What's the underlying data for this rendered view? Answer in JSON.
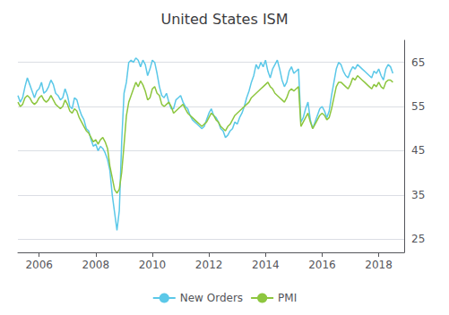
{
  "chart_data": {
    "type": "line",
    "title": "United States ISM",
    "x": [
      2005.25,
      2005.3333333333333,
      2005.4166666666667,
      2005.5,
      2005.5833333333333,
      2005.6666666666667,
      2005.75,
      2005.8333333333333,
      2005.9166666666667,
      2006,
      2006.0833333333333,
      2006.1666666666667,
      2006.25,
      2006.3333333333333,
      2006.4166666666667,
      2006.5,
      2006.5833333333333,
      2006.6666666666667,
      2006.75,
      2006.8333333333333,
      2006.9166666666667,
      2007,
      2007.0833333333333,
      2007.1666666666667,
      2007.25,
      2007.3333333333333,
      2007.4166666666667,
      2007.5,
      2007.5833333333333,
      2007.6666666666667,
      2007.75,
      2007.8333333333333,
      2007.9166666666667,
      2008,
      2008.0833333333333,
      2008.1666666666667,
      2008.25,
      2008.3333333333333,
      2008.4166666666667,
      2008.5,
      2008.5833333333333,
      2008.6666666666667,
      2008.75,
      2008.8333333333333,
      2008.9166666666667,
      2009,
      2009.0833333333333,
      2009.1666666666667,
      2009.25,
      2009.3333333333333,
      2009.4166666666667,
      2009.5,
      2009.5833333333333,
      2009.6666666666667,
      2009.75,
      2009.8333333333333,
      2009.9166666666667,
      2010,
      2010.0833333333333,
      2010.1666666666667,
      2010.25,
      2010.3333333333333,
      2010.4166666666667,
      2010.5,
      2010.5833333333333,
      2010.6666666666667,
      2010.75,
      2010.8333333333333,
      2010.9166666666667,
      2011,
      2011.0833333333333,
      2011.1666666666667,
      2011.25,
      2011.3333333333333,
      2011.4166666666667,
      2011.5,
      2011.5833333333333,
      2011.6666666666667,
      2011.75,
      2011.8333333333333,
      2011.9166666666667,
      2012,
      2012.0833333333333,
      2012.1666666666667,
      2012.25,
      2012.3333333333333,
      2012.4166666666667,
      2012.5,
      2012.5833333333333,
      2012.6666666666667,
      2012.75,
      2012.8333333333333,
      2012.9166666666667,
      2013,
      2013.0833333333333,
      2013.1666666666667,
      2013.25,
      2013.3333333333333,
      2013.4166666666667,
      2013.5,
      2013.5833333333333,
      2013.6666666666667,
      2013.75,
      2013.8333333333333,
      2013.9166666666667,
      2014,
      2014.0833333333333,
      2014.1666666666667,
      2014.25,
      2014.3333333333333,
      2014.4166666666667,
      2014.5,
      2014.5833333333333,
      2014.6666666666667,
      2014.75,
      2014.8333333333333,
      2014.9166666666667,
      2015,
      2015.0833333333333,
      2015.1666666666667,
      2015.25,
      2015.3333333333333,
      2015.4166666666667,
      2015.5,
      2015.5833333333333,
      2015.6666666666667,
      2015.75,
      2015.8333333333333,
      2015.9166666666667,
      2016,
      2016.0833333333333,
      2016.1666666666667,
      2016.25,
      2016.3333333333333,
      2016.4166666666667,
      2016.5,
      2016.5833333333333,
      2016.6666666666667,
      2016.75,
      2016.8333333333333,
      2016.9166666666667,
      2017,
      2017.0833333333333,
      2017.1666666666667,
      2017.25,
      2017.3333333333333,
      2017.4166666666667,
      2017.5,
      2017.5833333333333,
      2017.6666666666667,
      2017.75,
      2017.8333333333333,
      2017.9166666666667,
      2018,
      2018.0833333333333,
      2018.1666666666667,
      2018.25,
      2018.3333333333333,
      2018.4166666666667,
      2018.5
    ],
    "series": [
      {
        "name": "New Orders",
        "color": "#5bc8e8",
        "values": [
          57.5,
          56.0,
          57.0,
          59.5,
          61.5,
          60.0,
          58.5,
          57.0,
          58.5,
          59.0,
          60.5,
          58.0,
          58.5,
          59.5,
          61.0,
          60.0,
          58.0,
          57.5,
          56.5,
          57.0,
          59.0,
          57.5,
          55.0,
          54.5,
          57.0,
          56.5,
          54.5,
          53.0,
          52.0,
          50.0,
          49.5,
          47.5,
          46.0,
          46.5,
          45.0,
          46.0,
          45.5,
          44.5,
          43.0,
          40.5,
          35.0,
          31.0,
          27.0,
          31.5,
          47.0,
          58.0,
          60.5,
          65.0,
          65.5,
          65.0,
          66.0,
          65.5,
          64.0,
          65.5,
          64.5,
          62.0,
          63.5,
          65.5,
          65.0,
          62.5,
          59.5,
          57.5,
          57.0,
          58.0,
          56.0,
          54.5,
          54.5,
          56.5,
          57.0,
          57.5,
          56.0,
          55.0,
          54.5,
          53.0,
          52.0,
          51.5,
          51.0,
          50.5,
          50.0,
          50.5,
          52.0,
          53.5,
          54.5,
          53.0,
          52.5,
          51.5,
          50.0,
          49.5,
          48.0,
          48.5,
          49.5,
          50.0,
          51.5,
          51.0,
          52.5,
          53.5,
          55.0,
          57.0,
          58.5,
          60.5,
          62.0,
          64.5,
          63.5,
          65.0,
          64.0,
          65.5,
          63.0,
          61.5,
          63.5,
          64.5,
          65.5,
          63.5,
          61.0,
          59.5,
          60.5,
          63.0,
          64.0,
          62.5,
          63.0,
          63.5,
          51.5,
          52.5,
          54.5,
          56.0,
          52.0,
          50.0,
          51.5,
          53.0,
          54.5,
          55.0,
          54.0,
          52.5,
          54.0,
          57.5,
          60.5,
          63.5,
          65.0,
          64.5,
          63.0,
          62.0,
          61.5,
          63.0,
          64.0,
          63.5,
          64.5,
          64.0,
          63.5,
          63.0,
          62.5,
          62.0,
          61.5,
          63.0,
          62.5,
          63.5,
          62.0,
          61.0,
          63.5,
          64.5,
          64.0,
          62.5
        ]
      },
      {
        "name": "PMI",
        "color": "#8dc63f",
        "values": [
          56.0,
          55.0,
          55.5,
          57.0,
          57.5,
          57.0,
          56.0,
          55.5,
          56.0,
          57.0,
          57.5,
          56.5,
          56.0,
          56.5,
          57.5,
          56.5,
          55.5,
          55.0,
          54.5,
          55.0,
          56.5,
          55.5,
          54.0,
          53.5,
          54.5,
          54.0,
          52.5,
          51.5,
          50.5,
          49.5,
          49.0,
          48.0,
          47.0,
          47.5,
          46.5,
          47.5,
          48.0,
          47.0,
          45.5,
          41.5,
          38.9,
          36.2,
          35.4,
          36.3,
          40.1,
          46.3,
          52.9,
          56.0,
          57.5,
          59.0,
          60.5,
          59.5,
          60.8,
          59.9,
          58.5,
          56.5,
          57.0,
          59.0,
          59.5,
          58.0,
          57.5,
          55.5,
          55.0,
          55.5,
          56.0,
          55.0,
          53.5,
          54.0,
          54.5,
          55.0,
          55.5,
          54.5,
          53.5,
          53.0,
          52.5,
          52.0,
          51.5,
          51.0,
          50.5,
          51.0,
          51.5,
          52.5,
          53.5,
          53.0,
          52.0,
          51.5,
          50.5,
          50.0,
          49.5,
          50.5,
          51.0,
          52.0,
          53.0,
          53.5,
          54.0,
          54.5,
          55.0,
          55.5,
          56.0,
          57.0,
          57.5,
          58.0,
          58.5,
          59.0,
          59.5,
          60.0,
          60.5,
          59.5,
          59.0,
          58.0,
          57.5,
          57.0,
          56.5,
          56.0,
          57.0,
          58.5,
          59.0,
          58.5,
          59.0,
          59.5,
          50.5,
          51.5,
          52.5,
          53.5,
          51.5,
          50.0,
          51.0,
          52.0,
          53.0,
          53.5,
          53.0,
          52.0,
          52.5,
          54.5,
          57.0,
          59.5,
          60.5,
          60.5,
          60.0,
          59.5,
          59.0,
          60.0,
          61.5,
          61.0,
          62.0,
          61.5,
          61.0,
          60.5,
          60.0,
          59.5,
          59.0,
          60.0,
          59.5,
          60.5,
          59.5,
          59.0,
          60.5,
          61.0,
          61.0,
          60.5
        ]
      }
    ],
    "xlim": [
      2005.25,
      2018.9
    ],
    "xticks": [
      2006,
      2008,
      2010,
      2012,
      2014,
      2016,
      2018
    ],
    "ylim": [
      22,
      70
    ],
    "yticks": [
      25,
      35,
      45,
      55,
      65
    ],
    "grid": true,
    "legend": "bottom"
  }
}
